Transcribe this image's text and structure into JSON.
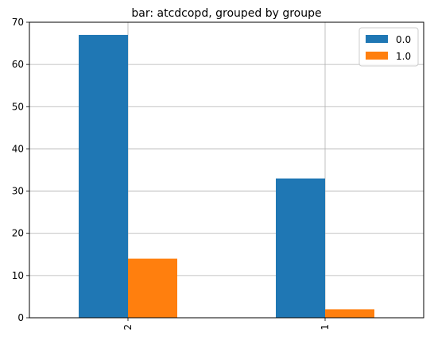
{
  "chart_data": {
    "type": "bar",
    "title": "bar: atcdcopd, grouped by groupe",
    "xlabel": "",
    "ylabel": "",
    "categories": [
      "2",
      "1"
    ],
    "series": [
      {
        "name": "0.0",
        "values": [
          67,
          33
        ],
        "color": "#1f77b4"
      },
      {
        "name": "1.0",
        "values": [
          14,
          2
        ],
        "color": "#ff7f0e"
      }
    ],
    "ylim": [
      0,
      70
    ],
    "yticks": [
      0,
      10,
      20,
      30,
      40,
      50,
      60,
      70
    ],
    "grid": true,
    "legend_position": "top-right"
  }
}
